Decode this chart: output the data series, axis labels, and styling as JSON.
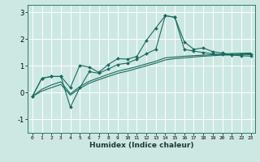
{
  "xlabel": "Humidex (Indice chaleur)",
  "ylabel": "",
  "bg_color": "#cde8e2",
  "grid_color": "#b8d8d2",
  "line_color": "#1a6b5e",
  "xlim": [
    -0.5,
    23.5
  ],
  "ylim": [
    -1.5,
    3.3
  ],
  "yticks": [
    -1,
    0,
    1,
    2,
    3
  ],
  "xticks": [
    0,
    1,
    2,
    3,
    4,
    5,
    6,
    7,
    8,
    9,
    10,
    11,
    12,
    13,
    14,
    15,
    16,
    17,
    18,
    19,
    20,
    21,
    22,
    23
  ],
  "line1_x": [
    0,
    1,
    2,
    3,
    4,
    5,
    6,
    7,
    8,
    9,
    10,
    11,
    12,
    13,
    14,
    15,
    16,
    17,
    18,
    19,
    20,
    21,
    22,
    23
  ],
  "line1_y": [
    -0.15,
    0.53,
    0.6,
    0.6,
    0.18,
    1.02,
    0.95,
    0.75,
    1.05,
    1.27,
    1.25,
    1.35,
    1.95,
    2.42,
    2.88,
    2.82,
    1.9,
    1.62,
    1.67,
    1.53,
    1.48,
    1.42,
    1.43,
    1.42
  ],
  "line2_x": [
    0,
    1,
    2,
    3,
    4,
    5,
    6,
    7,
    8,
    9,
    10,
    11,
    12,
    13,
    14,
    15,
    16,
    17,
    18,
    19,
    20,
    21,
    22,
    23
  ],
  "line2_y": [
    -0.15,
    0.53,
    0.6,
    0.6,
    -0.55,
    0.18,
    0.78,
    0.72,
    0.88,
    1.05,
    1.1,
    1.25,
    1.45,
    1.62,
    2.88,
    2.82,
    1.62,
    1.55,
    1.5,
    1.45,
    1.42,
    1.4,
    1.38,
    1.36
  ],
  "line3_x": [
    0,
    1,
    2,
    3,
    4,
    5,
    6,
    7,
    8,
    9,
    10,
    11,
    12,
    13,
    14,
    15,
    16,
    17,
    18,
    19,
    20,
    21,
    22,
    23
  ],
  "line3_y": [
    -0.15,
    0.12,
    0.28,
    0.4,
    -0.05,
    0.22,
    0.42,
    0.55,
    0.68,
    0.8,
    0.88,
    0.97,
    1.07,
    1.17,
    1.3,
    1.33,
    1.36,
    1.38,
    1.4,
    1.42,
    1.44,
    1.46,
    1.47,
    1.48
  ],
  "line4_x": [
    0,
    1,
    2,
    3,
    4,
    5,
    6,
    7,
    8,
    9,
    10,
    11,
    12,
    13,
    14,
    15,
    16,
    17,
    18,
    19,
    20,
    21,
    22,
    23
  ],
  "line4_y": [
    -0.15,
    0.05,
    0.18,
    0.3,
    -0.1,
    0.15,
    0.35,
    0.48,
    0.6,
    0.72,
    0.8,
    0.9,
    1.0,
    1.1,
    1.22,
    1.27,
    1.3,
    1.33,
    1.36,
    1.38,
    1.4,
    1.42,
    1.44,
    1.45
  ]
}
